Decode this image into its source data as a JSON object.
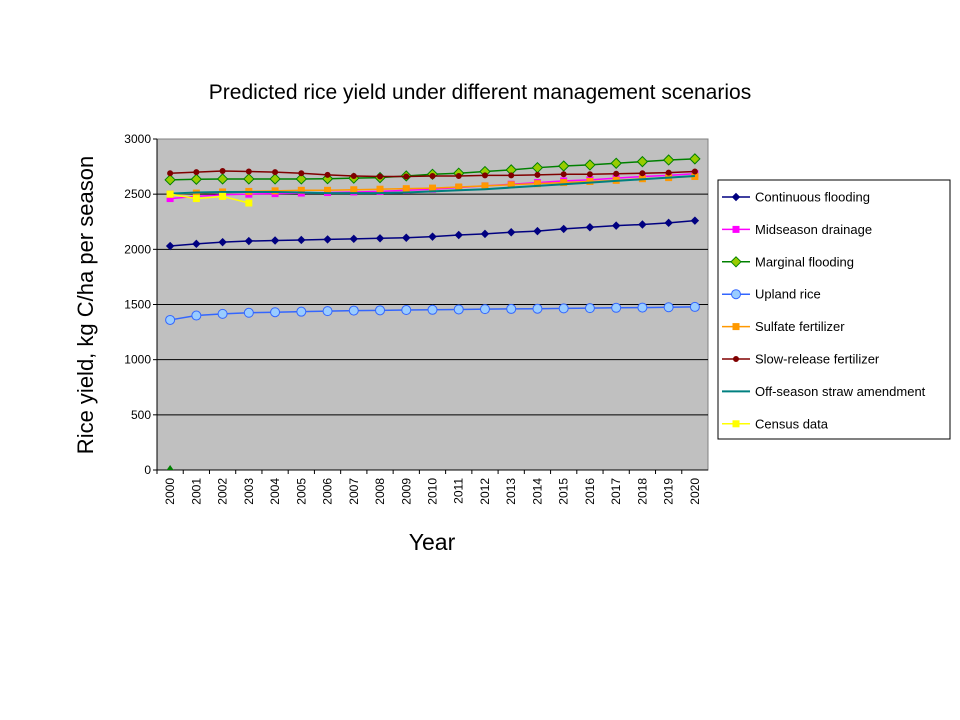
{
  "chart_data": {
    "type": "line",
    "title": "Predicted rice yield under different management scenarios",
    "xlabel": "Year",
    "ylabel": "Rice yield, kg C/ha per season",
    "ylim": [
      0,
      3000
    ],
    "yticks": [
      0,
      500,
      1000,
      1500,
      2000,
      2500,
      3000
    ],
    "grid": true,
    "legend_position": "right",
    "plot_background": "#c0c0c0",
    "categories": [
      "2000",
      "2001",
      "2002",
      "2003",
      "2004",
      "2005",
      "2006",
      "2007",
      "2008",
      "2009",
      "2010",
      "2011",
      "2012",
      "2013",
      "2014",
      "2015",
      "2016",
      "2017",
      "2018",
      "2019",
      "2020"
    ],
    "series": [
      {
        "name": "Continuous flooding",
        "color": "#000080",
        "marker": "diamond",
        "values": [
          2030,
          2050,
          2065,
          2075,
          2080,
          2085,
          2090,
          2095,
          2100,
          2105,
          2115,
          2130,
          2140,
          2155,
          2165,
          2185,
          2200,
          2215,
          2225,
          2240,
          2260
        ]
      },
      {
        "name": "Midseason drainage",
        "color": "#ff00ff",
        "marker": "square",
        "values": [
          2460,
          2480,
          2495,
          2500,
          2505,
          2510,
          2515,
          2520,
          2525,
          2535,
          2545,
          2560,
          2575,
          2590,
          2605,
          2620,
          2630,
          2645,
          2660,
          2670,
          2685
        ]
      },
      {
        "name": "Marginal flooding",
        "color": "#99cc00",
        "line_color": "#008000",
        "marker": "diamond-large",
        "values": [
          2630,
          2635,
          2638,
          2638,
          2638,
          2638,
          2640,
          2645,
          2650,
          2665,
          2680,
          2690,
          2705,
          2720,
          2740,
          2755,
          2765,
          2780,
          2795,
          2810,
          2820
        ]
      },
      {
        "name": "Upland rice",
        "color": "#99ccff",
        "line_color": "#3366ff",
        "marker": "circle",
        "values": [
          1360,
          1400,
          1415,
          1425,
          1430,
          1435,
          1440,
          1445,
          1447,
          1450,
          1452,
          1455,
          1458,
          1460,
          1462,
          1465,
          1467,
          1470,
          1472,
          1475,
          1478
        ]
      },
      {
        "name": "Sulfate fertilizer",
        "color": "#ff9900",
        "marker": "square",
        "values": [
          2500,
          2510,
          2520,
          2525,
          2530,
          2535,
          2535,
          2540,
          2545,
          2550,
          2555,
          2565,
          2575,
          2585,
          2595,
          2605,
          2615,
          2625,
          2640,
          2650,
          2660
        ]
      },
      {
        "name": "Slow-release fertilizer",
        "color": "#800000",
        "marker": "dot",
        "values": [
          2690,
          2700,
          2710,
          2705,
          2700,
          2690,
          2675,
          2665,
          2660,
          2660,
          2665,
          2665,
          2670,
          2670,
          2675,
          2680,
          2680,
          2685,
          2690,
          2695,
          2705
        ]
      },
      {
        "name": "Off-season straw amendment",
        "color": "#008080",
        "marker": "none",
        "values": [
          2505,
          2515,
          2520,
          2520,
          2520,
          2515,
          2510,
          2510,
          2510,
          2515,
          2525,
          2535,
          2545,
          2560,
          2575,
          2590,
          2605,
          2620,
          2635,
          2650,
          2665
        ]
      },
      {
        "name": "Census data",
        "color": "#ffff00",
        "marker": "square",
        "values": [
          2500,
          2460,
          2480,
          2420,
          null,
          null,
          null,
          null,
          null,
          null,
          null,
          null,
          null,
          null,
          null,
          null,
          null,
          null,
          null,
          null,
          null
        ]
      }
    ],
    "annotations": [
      {
        "type": "triangle-marker",
        "x": "2000",
        "y": 0,
        "color": "#008000"
      }
    ]
  }
}
